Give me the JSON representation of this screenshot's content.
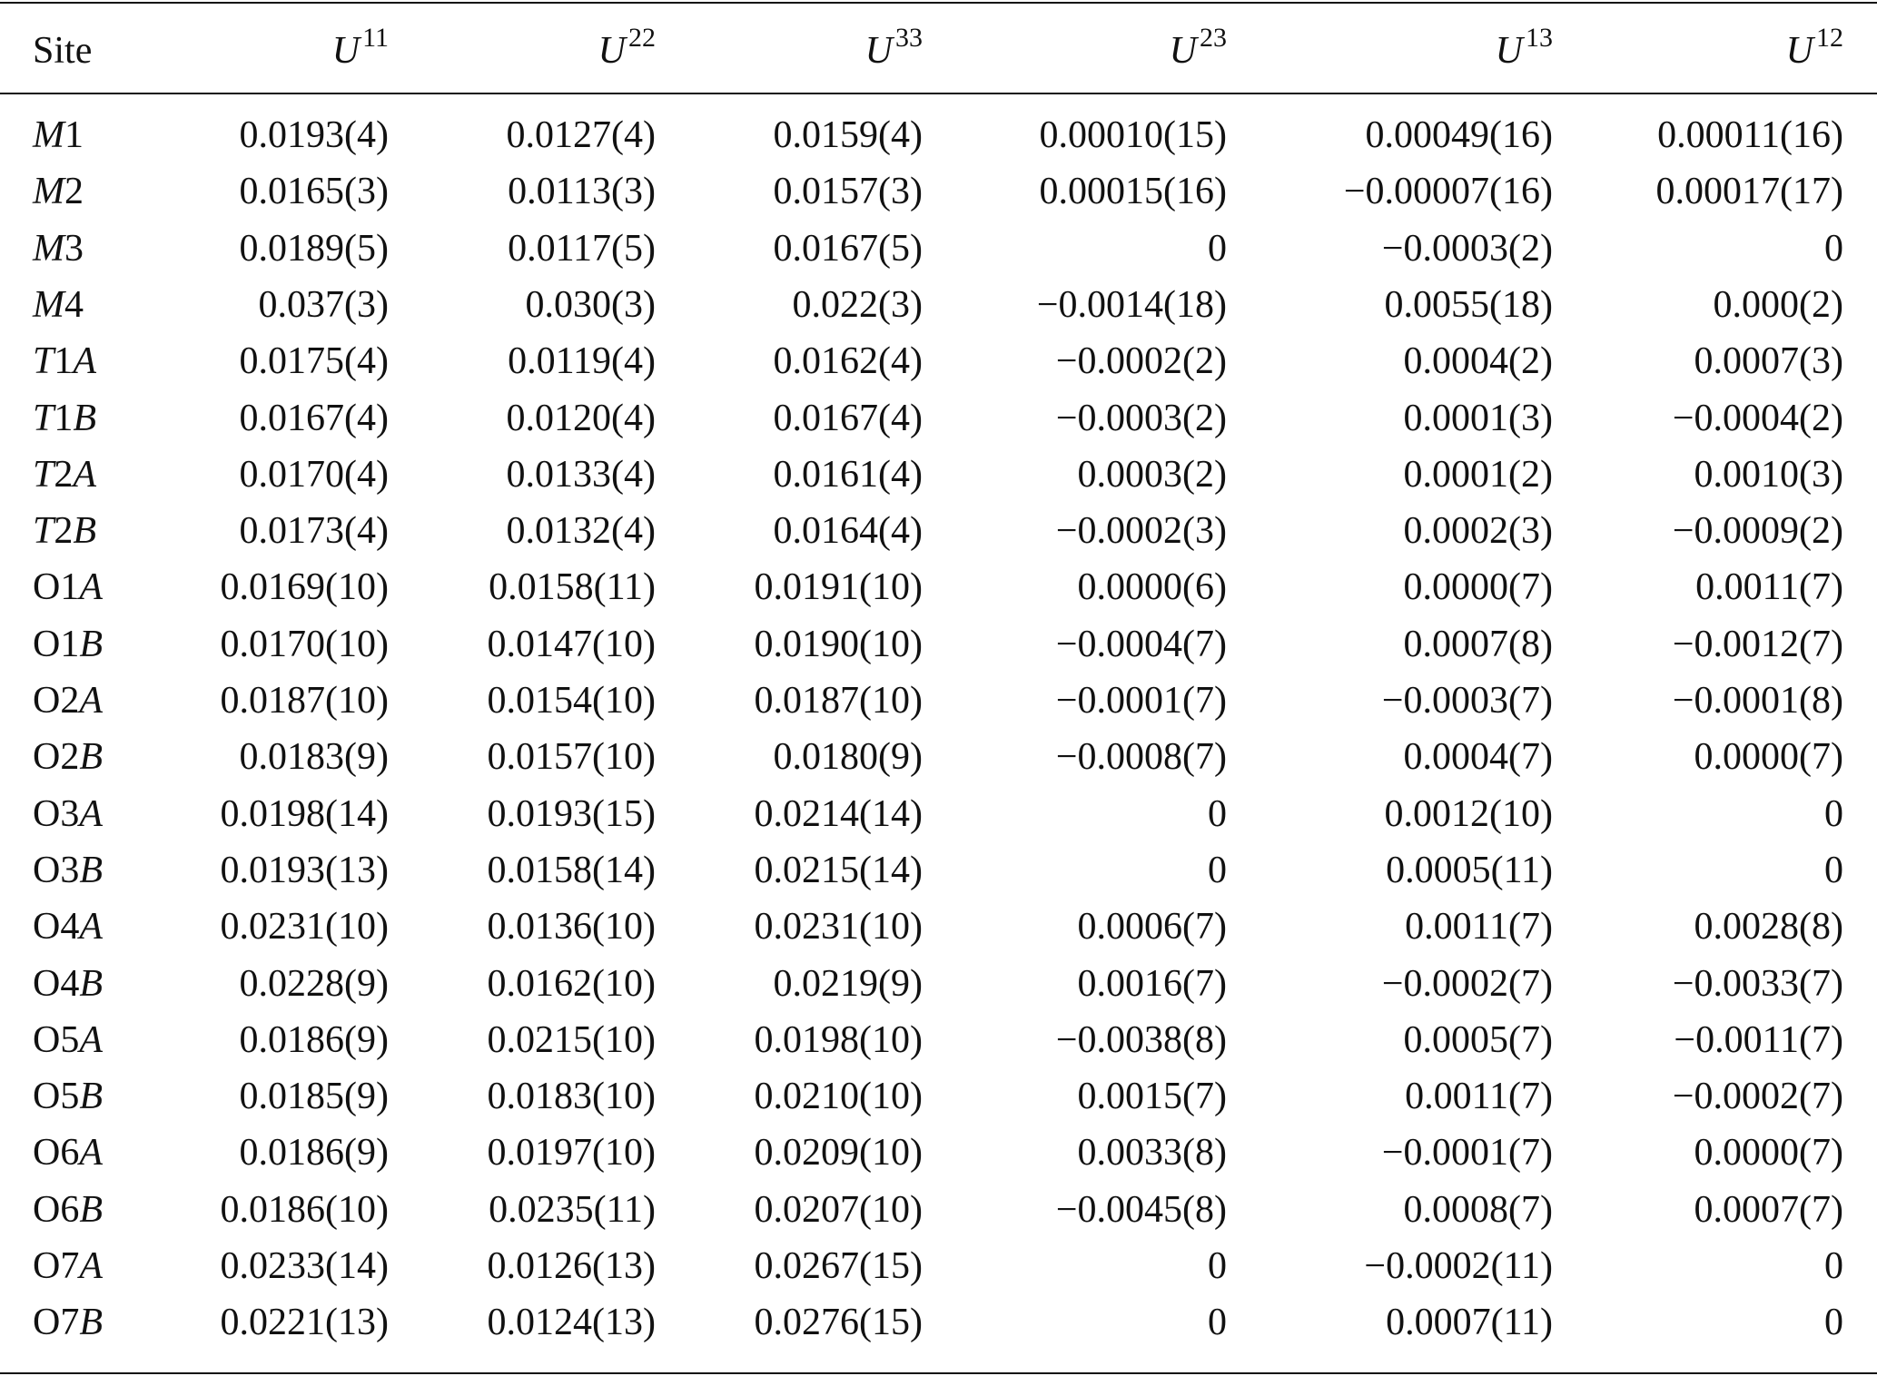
{
  "table": {
    "header": [
      "Site",
      "U11",
      "U22",
      "U33",
      "U23",
      "U13",
      "U12"
    ],
    "rows": [
      [
        "M1",
        "0.0193(4)",
        "0.0127(4)",
        "0.0159(4)",
        "0.00010(15)",
        "0.00049(16)",
        "0.00011(16)"
      ],
      [
        "M2",
        "0.0165(3)",
        "0.0113(3)",
        "0.0157(3)",
        "0.00015(16)",
        "−0.00007(16)",
        "0.00017(17)"
      ],
      [
        "M3",
        "0.0189(5)",
        "0.0117(5)",
        "0.0167(5)",
        "0",
        "−0.0003(2)",
        "0"
      ],
      [
        "M4",
        "0.037(3)",
        "0.030(3)",
        "0.022(3)",
        "−0.0014(18)",
        "0.0055(18)",
        "0.000(2)"
      ],
      [
        "T1A",
        "0.0175(4)",
        "0.0119(4)",
        "0.0162(4)",
        "−0.0002(2)",
        "0.0004(2)",
        "0.0007(3)"
      ],
      [
        "T1B",
        "0.0167(4)",
        "0.0120(4)",
        "0.0167(4)",
        "−0.0003(2)",
        "0.0001(3)",
        "−0.0004(2)"
      ],
      [
        "T2A",
        "0.0170(4)",
        "0.0133(4)",
        "0.0161(4)",
        "0.0003(2)",
        "0.0001(2)",
        "0.0010(3)"
      ],
      [
        "T2B",
        "0.0173(4)",
        "0.0132(4)",
        "0.0164(4)",
        "−0.0002(3)",
        "0.0002(3)",
        "−0.0009(2)"
      ],
      [
        "O1A",
        "0.0169(10)",
        "0.0158(11)",
        "0.0191(10)",
        "0.0000(6)",
        "0.0000(7)",
        "0.0011(7)"
      ],
      [
        "O1B",
        "0.0170(10)",
        "0.0147(10)",
        "0.0190(10)",
        "−0.0004(7)",
        "0.0007(8)",
        "−0.0012(7)"
      ],
      [
        "O2A",
        "0.0187(10)",
        "0.0154(10)",
        "0.0187(10)",
        "−0.0001(7)",
        "−0.0003(7)",
        "−0.0001(8)"
      ],
      [
        "O2B",
        "0.0183(9)",
        "0.0157(10)",
        "0.0180(9)",
        "−0.0008(7)",
        "0.0004(7)",
        "0.0000(7)"
      ],
      [
        "O3A",
        "0.0198(14)",
        "0.0193(15)",
        "0.0214(14)",
        "0",
        "0.0012(10)",
        "0"
      ],
      [
        "O3B",
        "0.0193(13)",
        "0.0158(14)",
        "0.0215(14)",
        "0",
        "0.0005(11)",
        "0"
      ],
      [
        "O4A",
        "0.0231(10)",
        "0.0136(10)",
        "0.0231(10)",
        "0.0006(7)",
        "0.0011(7)",
        "0.0028(8)"
      ],
      [
        "O4B",
        "0.0228(9)",
        "0.0162(10)",
        "0.0219(9)",
        "0.0016(7)",
        "−0.0002(7)",
        "−0.0033(7)"
      ],
      [
        "O5A",
        "0.0186(9)",
        "0.0215(10)",
        "0.0198(10)",
        "−0.0038(8)",
        "0.0005(7)",
        "−0.0011(7)"
      ],
      [
        "O5B",
        "0.0185(9)",
        "0.0183(10)",
        "0.0210(10)",
        "0.0015(7)",
        "0.0011(7)",
        "−0.0002(7)"
      ],
      [
        "O6A",
        "0.0186(9)",
        "0.0197(10)",
        "0.0209(10)",
        "0.0033(8)",
        "−0.0001(7)",
        "0.0000(7)"
      ],
      [
        "O6B",
        "0.0186(10)",
        "0.0235(11)",
        "0.0207(10)",
        "−0.0045(8)",
        "0.0008(7)",
        "0.0007(7)"
      ],
      [
        "O7A",
        "0.0233(14)",
        "0.0126(13)",
        "0.0267(15)",
        "0",
        "−0.0002(11)",
        "0"
      ],
      [
        "O7B",
        "0.0221(13)",
        "0.0124(13)",
        "0.0276(15)",
        "0",
        "0.0007(11)",
        "0"
      ]
    ]
  }
}
